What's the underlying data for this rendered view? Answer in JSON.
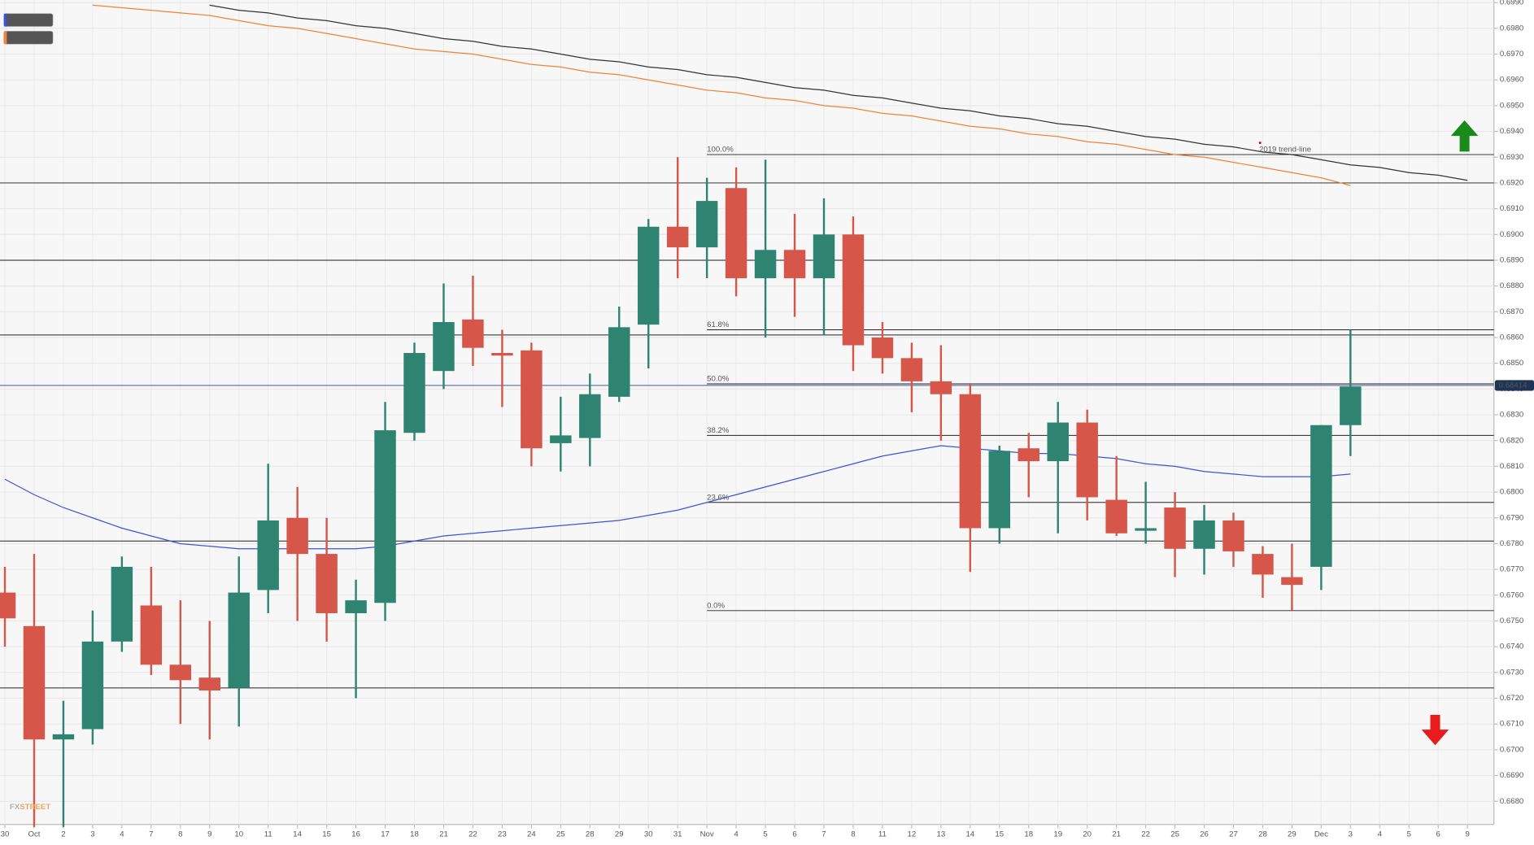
{
  "chart_data": {
    "type": "candlestick",
    "categories": [
      "30",
      "Oct",
      "2",
      "3",
      "4",
      "7",
      "8",
      "9",
      "10",
      "11",
      "14",
      "15",
      "16",
      "17",
      "18",
      "21",
      "22",
      "23",
      "24",
      "25",
      "28",
      "29",
      "30",
      "31",
      "Nov",
      "4",
      "5",
      "6",
      "7",
      "8",
      "11",
      "12",
      "13",
      "14",
      "15",
      "18",
      "19",
      "20",
      "21",
      "22",
      "25",
      "26",
      "27",
      "28",
      "29",
      "Dec",
      "3",
      "4",
      "5",
      "6",
      "9"
    ],
    "open": [
      0.6761,
      0.6748,
      0.6704,
      0.6708,
      0.6742,
      0.6756,
      0.6733,
      0.6728,
      0.6724,
      0.6762,
      0.679,
      0.6776,
      0.6753,
      0.6757,
      0.6823,
      0.6847,
      0.6867,
      0.6854,
      0.6855,
      0.6819,
      0.6821,
      0.6837,
      0.6865,
      0.6903,
      0.6895,
      0.6918,
      0.6883,
      0.6894,
      0.6883,
      0.69,
      0.686,
      0.6852,
      0.6843,
      0.6838,
      0.6786,
      0.6817,
      0.6812,
      0.6827,
      0.6797,
      0.6785,
      0.6794,
      0.6778,
      0.6789,
      0.6776,
      0.6767,
      0.6771,
      0.6826,
      null,
      null,
      null,
      null
    ],
    "high": [
      0.6771,
      0.6776,
      0.6719,
      0.6754,
      0.6775,
      0.6771,
      0.6758,
      0.675,
      0.6775,
      0.6811,
      0.6802,
      0.679,
      0.6766,
      0.6835,
      0.6858,
      0.6881,
      0.6884,
      0.6863,
      0.6858,
      0.6837,
      0.6846,
      0.6872,
      0.6906,
      0.693,
      0.6922,
      0.6926,
      0.6929,
      0.6908,
      0.6914,
      0.6907,
      0.6866,
      0.6858,
      0.6857,
      0.6842,
      0.6818,
      0.6823,
      0.6835,
      0.6832,
      0.6814,
      0.6804,
      0.68,
      0.6795,
      0.6792,
      0.6779,
      0.678,
      0.6826,
      0.6863,
      null,
      null,
      null,
      null
    ],
    "low": [
      0.674,
      0.667,
      0.667,
      0.6702,
      0.6738,
      0.6729,
      0.671,
      0.6704,
      0.6709,
      0.6753,
      0.675,
      0.6742,
      0.672,
      0.675,
      0.682,
      0.684,
      0.6849,
      0.6833,
      0.681,
      0.6808,
      0.681,
      0.6835,
      0.6848,
      0.6883,
      0.6883,
      0.6876,
      0.686,
      0.6868,
      0.6861,
      0.6847,
      0.6846,
      0.6831,
      0.682,
      0.6769,
      0.678,
      0.6798,
      0.6784,
      0.6789,
      0.6783,
      0.678,
      0.6767,
      0.6768,
      0.6771,
      0.6759,
      0.6754,
      0.6762,
      0.6814,
      null,
      null,
      null,
      null
    ],
    "close": [
      0.6751,
      0.6704,
      0.6706,
      0.6742,
      0.6771,
      0.6733,
      0.6727,
      0.6723,
      0.6761,
      0.6789,
      0.6776,
      0.6753,
      0.6758,
      0.6824,
      0.6854,
      0.6866,
      0.6856,
      0.6853,
      0.6817,
      0.6822,
      0.6838,
      0.6864,
      0.6903,
      0.6895,
      0.6913,
      0.6883,
      0.6894,
      0.6883,
      0.69,
      0.6857,
      0.6852,
      0.6843,
      0.6838,
      0.6786,
      0.6816,
      0.6812,
      0.6827,
      0.6798,
      0.6784,
      0.6786,
      0.6778,
      0.6789,
      0.6777,
      0.6768,
      0.6764,
      0.6826,
      0.6841,
      null,
      null,
      null,
      null
    ],
    "up_color": "#2e8470",
    "down_color": "#d6564a",
    "series": [
      {
        "name": "SMA (50,0)",
        "color": "#3b55d6",
        "values": [
          0.6805,
          0.6799,
          0.6794,
          0.679,
          0.6786,
          0.6783,
          0.678,
          0.6779,
          0.6778,
          0.6778,
          0.6778,
          0.6778,
          0.6778,
          0.6779,
          0.6781,
          0.6783,
          0.6784,
          0.6785,
          0.6786,
          0.6787,
          0.6788,
          0.6789,
          0.6791,
          0.6793,
          0.6796,
          0.6799,
          0.6802,
          0.6805,
          0.6808,
          0.6811,
          0.6814,
          0.6816,
          0.6818,
          0.6817,
          0.6816,
          0.6815,
          0.6815,
          0.6814,
          0.6813,
          0.6811,
          0.681,
          0.6808,
          0.6807,
          0.6806,
          0.6806,
          0.6806,
          0.6807,
          null,
          null,
          null,
          null
        ]
      },
      {
        "name": "SMA (200,0)",
        "color": "#f0833a",
        "values": [
          null,
          null,
          null,
          0.6989,
          0.6988,
          0.6987,
          0.6986,
          0.6985,
          0.6983,
          0.6981,
          0.698,
          0.6978,
          0.6976,
          0.6974,
          0.6972,
          0.6971,
          0.697,
          0.6968,
          0.6966,
          0.6965,
          0.6963,
          0.6962,
          0.696,
          0.6958,
          0.6956,
          0.6955,
          0.6953,
          0.6952,
          0.695,
          0.6949,
          0.6947,
          0.6946,
          0.6944,
          0.6942,
          0.6941,
          0.6939,
          0.6938,
          0.6936,
          0.6935,
          0.6933,
          0.6931,
          0.693,
          0.6928,
          0.6926,
          0.6924,
          0.6922,
          0.6919,
          null,
          null,
          null,
          null
        ]
      }
    ],
    "trend_line": {
      "label": "2019 trend-line",
      "color": "#333333",
      "values": [
        null,
        null,
        null,
        null,
        null,
        null,
        null,
        0.6989,
        0.6987,
        0.6986,
        0.6984,
        0.6983,
        0.6981,
        0.698,
        0.6978,
        0.6976,
        0.6975,
        0.6973,
        0.6972,
        0.697,
        0.6968,
        0.6967,
        0.6965,
        0.6964,
        0.6962,
        0.6961,
        0.6959,
        0.6957,
        0.6956,
        0.6954,
        0.6953,
        0.6951,
        0.6949,
        0.6948,
        0.6946,
        0.6945,
        0.6943,
        0.6942,
        0.694,
        0.6938,
        0.6937,
        0.6935,
        0.6934,
        0.6932,
        0.6931,
        0.6929,
        0.6927,
        0.6926,
        0.6924,
        0.6923,
        0.6921
      ]
    },
    "hlines": [
      0.692,
      0.689,
      0.6861,
      0.6781,
      0.6724
    ],
    "current_price": 0.68414,
    "fib_levels": [
      {
        "label": "100.0%",
        "value": 0.6931
      },
      {
        "label": "61.8%",
        "value": 0.6863
      },
      {
        "label": "50.0%",
        "value": 0.6842
      },
      {
        "label": "38.2%",
        "value": 0.6822
      },
      {
        "label": "23.6%",
        "value": 0.6796
      },
      {
        "label": "0.0%",
        "value": 0.6754
      }
    ],
    "watermark": [
      "FX",
      "STREET"
    ],
    "ylim": [
      0.6671,
      0.6991
    ],
    "yticks": [
      {
        "value": 0.668,
        "label": "0.6680"
      },
      {
        "value": 0.669,
        "label": "0.6690"
      },
      {
        "value": 0.67,
        "label": "0.6700"
      },
      {
        "value": 0.671,
        "label": "0.6710"
      },
      {
        "value": 0.672,
        "label": "0.6720"
      },
      {
        "value": 0.673,
        "label": "0.6730"
      },
      {
        "value": 0.674,
        "label": "0.6740"
      },
      {
        "value": 0.675,
        "label": "0.6750"
      },
      {
        "value": 0.676,
        "label": "0.6760"
      },
      {
        "value": 0.677,
        "label": "0.6770"
      },
      {
        "value": 0.678,
        "label": "0.6780"
      },
      {
        "value": 0.679,
        "label": "0.6790"
      },
      {
        "value": 0.68,
        "label": "0.6800"
      },
      {
        "value": 0.681,
        "label": "0.6810"
      },
      {
        "value": 0.682,
        "label": "0.6820"
      },
      {
        "value": 0.683,
        "label": "0.6830"
      },
      {
        "value": 0.684,
        "label": "0.6840"
      },
      {
        "value": 0.685,
        "label": "0.6850"
      },
      {
        "value": 0.686,
        "label": "0.6860"
      },
      {
        "value": 0.687,
        "label": "0.6870"
      },
      {
        "value": 0.688,
        "label": "0.6880"
      },
      {
        "value": 0.689,
        "label": "0.6890"
      },
      {
        "value": 0.69,
        "label": "0.6900"
      },
      {
        "value": 0.691,
        "label": "0.6910"
      },
      {
        "value": 0.692,
        "label": "0.6920"
      },
      {
        "value": 0.693,
        "label": "0.6930"
      },
      {
        "value": 0.694,
        "label": "0.6940"
      },
      {
        "value": 0.695,
        "label": "0.6950"
      },
      {
        "value": 0.696,
        "label": "0.6960"
      },
      {
        "value": 0.697,
        "label": "0.6970"
      },
      {
        "value": 0.698,
        "label": "0.6980"
      },
      {
        "value": 0.699,
        "label": "0.6990"
      }
    ],
    "grid": true
  }
}
